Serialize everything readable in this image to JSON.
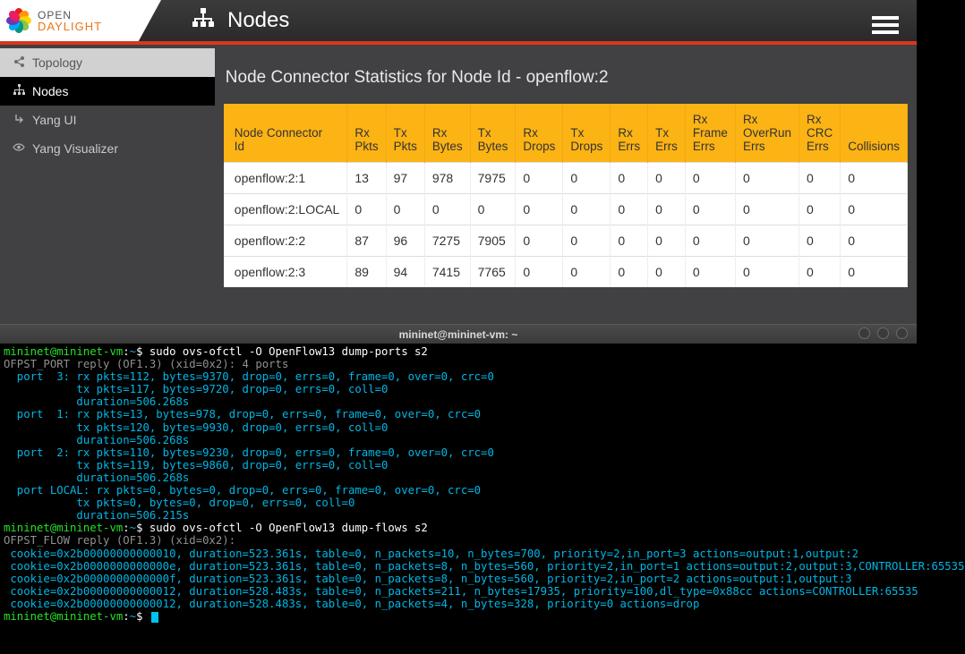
{
  "header": {
    "logo_line1": "OPEN",
    "logo_line2": "DAYLIGHT",
    "petal_colors": [
      "#e51c23",
      "#ff9800",
      "#ffd600",
      "#8bc34a",
      "#009688",
      "#03a9f4",
      "#673ab7",
      "#e91e63"
    ],
    "title": "Nodes",
    "title_icon_color": "#ffffff",
    "accent_color": "#d8381f"
  },
  "sidebar": {
    "items": [
      {
        "icon": "share",
        "label": "Topology",
        "state": "first"
      },
      {
        "icon": "sitemap",
        "label": "Nodes",
        "state": "active"
      },
      {
        "icon": "level",
        "label": "Yang UI",
        "state": ""
      },
      {
        "icon": "eye",
        "label": "Yang Visualizer",
        "state": ""
      }
    ]
  },
  "main": {
    "heading": "Node Connector Statistics for Node Id - openflow:2",
    "table": {
      "header_bg": "#fcb314",
      "columns": [
        "Node Connector Id",
        "Rx Pkts",
        "Tx Pkts",
        "Rx Bytes",
        "Tx Bytes",
        "Rx Drops",
        "Tx Drops",
        "Rx Errs",
        "Tx Errs",
        "Rx Frame Errs",
        "Rx OverRun Errs",
        "Rx CRC Errs",
        "Collisions"
      ],
      "rows": [
        [
          "openflow:2:1",
          "13",
          "97",
          "978",
          "7975",
          "0",
          "0",
          "0",
          "0",
          "0",
          "0",
          "0",
          "0"
        ],
        [
          "openflow:2:LOCAL",
          "0",
          "0",
          "0",
          "0",
          "0",
          "0",
          "0",
          "0",
          "0",
          "0",
          "0",
          "0"
        ],
        [
          "openflow:2:2",
          "87",
          "96",
          "7275",
          "7905",
          "0",
          "0",
          "0",
          "0",
          "0",
          "0",
          "0",
          "0"
        ],
        [
          "openflow:2:3",
          "89",
          "94",
          "7415",
          "7765",
          "0",
          "0",
          "0",
          "0",
          "0",
          "0",
          "0",
          "0"
        ]
      ]
    }
  },
  "terminal": {
    "title": "mininet@mininet-vm: ~",
    "prompt_user": "mininet@mininet-vm",
    "prompt_path": "~",
    "lines": [
      {
        "t": "cmd",
        "cmd": "sudo ovs-ofctl -O OpenFlow13 dump-ports s2"
      },
      {
        "t": "plain",
        "text": "OFPST_PORT reply (OF1.3) (xid=0x2): 4 ports"
      },
      {
        "t": "out",
        "text": "  port  3: rx pkts=112, bytes=9370, drop=0, errs=0, frame=0, over=0, crc=0"
      },
      {
        "t": "out",
        "text": "           tx pkts=117, bytes=9720, drop=0, errs=0, coll=0"
      },
      {
        "t": "out",
        "text": "           duration=506.268s"
      },
      {
        "t": "out",
        "text": "  port  1: rx pkts=13, bytes=978, drop=0, errs=0, frame=0, over=0, crc=0"
      },
      {
        "t": "out",
        "text": "           tx pkts=120, bytes=9930, drop=0, errs=0, coll=0"
      },
      {
        "t": "out",
        "text": "           duration=506.268s"
      },
      {
        "t": "out",
        "text": "  port  2: rx pkts=110, bytes=9230, drop=0, errs=0, frame=0, over=0, crc=0"
      },
      {
        "t": "out",
        "text": "           tx pkts=119, bytes=9860, drop=0, errs=0, coll=0"
      },
      {
        "t": "out",
        "text": "           duration=506.268s"
      },
      {
        "t": "out",
        "text": "  port LOCAL: rx pkts=0, bytes=0, drop=0, errs=0, frame=0, over=0, crc=0"
      },
      {
        "t": "out",
        "text": "           tx pkts=0, bytes=0, drop=0, errs=0, coll=0"
      },
      {
        "t": "out",
        "text": "           duration=506.215s"
      },
      {
        "t": "cmd",
        "cmd": "sudo ovs-ofctl -O OpenFlow13 dump-flows s2"
      },
      {
        "t": "plain",
        "text": "OFPST_FLOW reply (OF1.3) (xid=0x2):"
      },
      {
        "t": "out",
        "text": " cookie=0x2b00000000000010, duration=523.361s, table=0, n_packets=10, n_bytes=700, priority=2,in_port=3 actions=output:1,output:2"
      },
      {
        "t": "out",
        "text": " cookie=0x2b0000000000000e, duration=523.361s, table=0, n_packets=8, n_bytes=560, priority=2,in_port=1 actions=output:2,output:3,CONTROLLER:65535"
      },
      {
        "t": "out",
        "text": " cookie=0x2b0000000000000f, duration=523.361s, table=0, n_packets=8, n_bytes=560, priority=2,in_port=2 actions=output:1,output:3"
      },
      {
        "t": "out",
        "text": " cookie=0x2b00000000000012, duration=528.483s, table=0, n_packets=211, n_bytes=17935, priority=100,dl_type=0x88cc actions=CONTROLLER:65535"
      },
      {
        "t": "out",
        "text": " cookie=0x2b00000000000012, duration=528.483s, table=0, n_packets=4, n_bytes=328, priority=0 actions=drop"
      },
      {
        "t": "cmd",
        "cmd": ""
      }
    ]
  }
}
